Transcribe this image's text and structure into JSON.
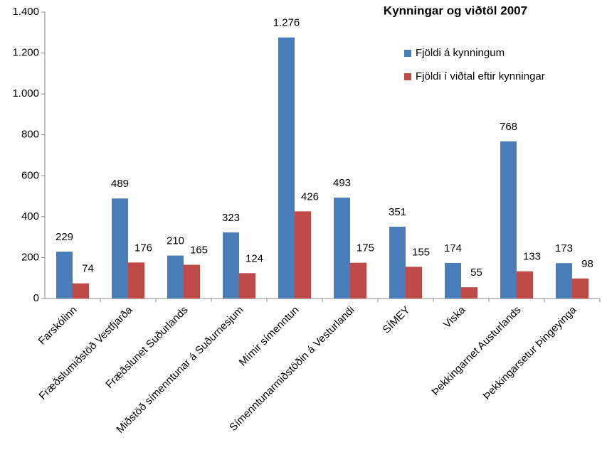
{
  "chart_data": {
    "type": "bar",
    "title": "Kynningar og viðtöl 2007",
    "categories": [
      "Farskólinn",
      "Fræðslumiðstöð Vestfjarða",
      "Fræðslunet Suðurlands",
      "Miðstöð símenntunar á Suðurnesjum",
      "Mímir símenntun",
      "Símenntunarmiðstöðin á Vesturlandi",
      "SÍMEY",
      "Viska",
      "Þekkingarnet Austurlands",
      "Þekkingarsetur Þingeyinga"
    ],
    "series": [
      {
        "name": "Fjöldi á kynningum",
        "color": "#4a7ebb",
        "values": [
          229,
          489,
          210,
          323,
          1276,
          493,
          351,
          174,
          768,
          173
        ],
        "value_labels": [
          "229",
          "489",
          "210",
          "323",
          "1.276",
          "493",
          "351",
          "174",
          "768",
          "173"
        ]
      },
      {
        "name": "Fjöldi í viðtal eftir kynningar",
        "color": "#be4b48",
        "values": [
          74,
          176,
          165,
          124,
          426,
          175,
          155,
          55,
          133,
          98
        ]
      }
    ],
    "ylim": [
      0,
      1400
    ],
    "yticks": [
      0,
      200,
      400,
      600,
      800,
      {
        "value": 1000,
        "label": "1.000"
      },
      {
        "value": 1200,
        "label": "1.200"
      },
      {
        "value": 1400,
        "label": "1.400"
      }
    ],
    "grid": false,
    "legend": "top-right"
  }
}
